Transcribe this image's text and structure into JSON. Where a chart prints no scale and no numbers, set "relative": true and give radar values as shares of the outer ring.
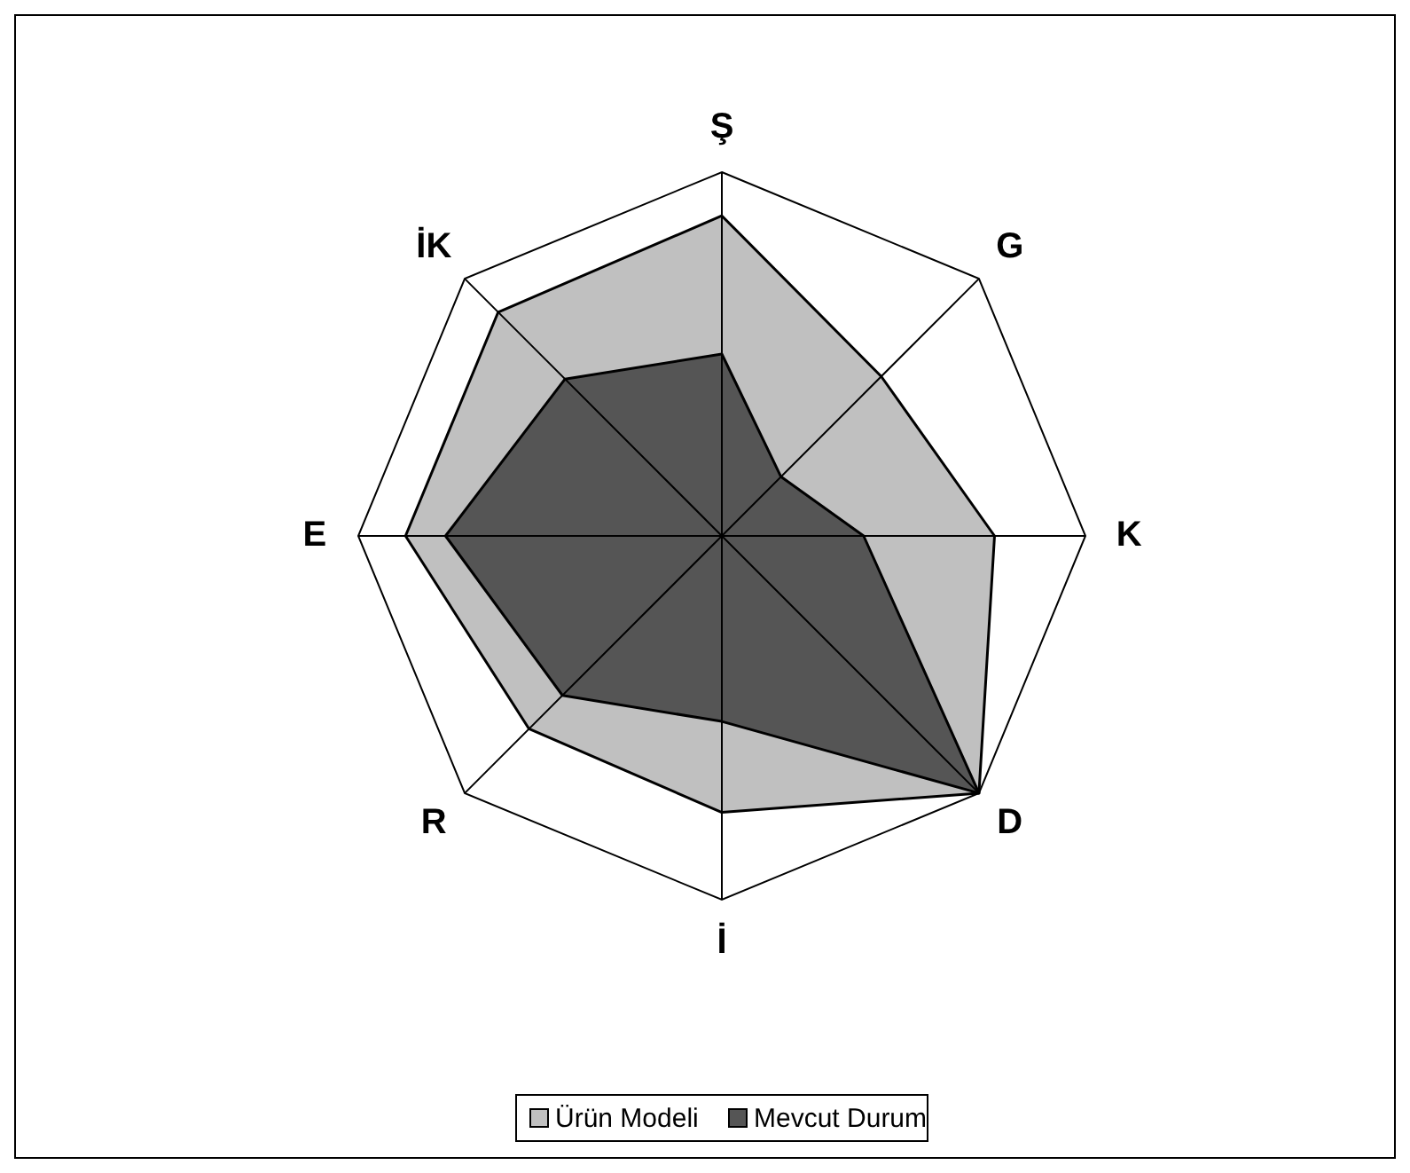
{
  "chart_data": {
    "type": "radar",
    "relative": true,
    "categories": [
      "Ş",
      "G",
      "K",
      "D",
      "İ",
      "R",
      "E",
      "İK"
    ],
    "series": [
      {
        "name": "Ürün Modeli",
        "color": "#c0c0c0",
        "values": [
          0.88,
          0.62,
          0.75,
          1,
          0.76,
          0.75,
          0.87,
          0.87
        ]
      },
      {
        "name": "Mevcut Durum",
        "color": "#555555",
        "values": [
          0.5,
          0.23,
          0.39,
          1,
          0.51,
          0.62,
          0.76,
          0.61
        ]
      }
    ],
    "legend": "bottom"
  }
}
